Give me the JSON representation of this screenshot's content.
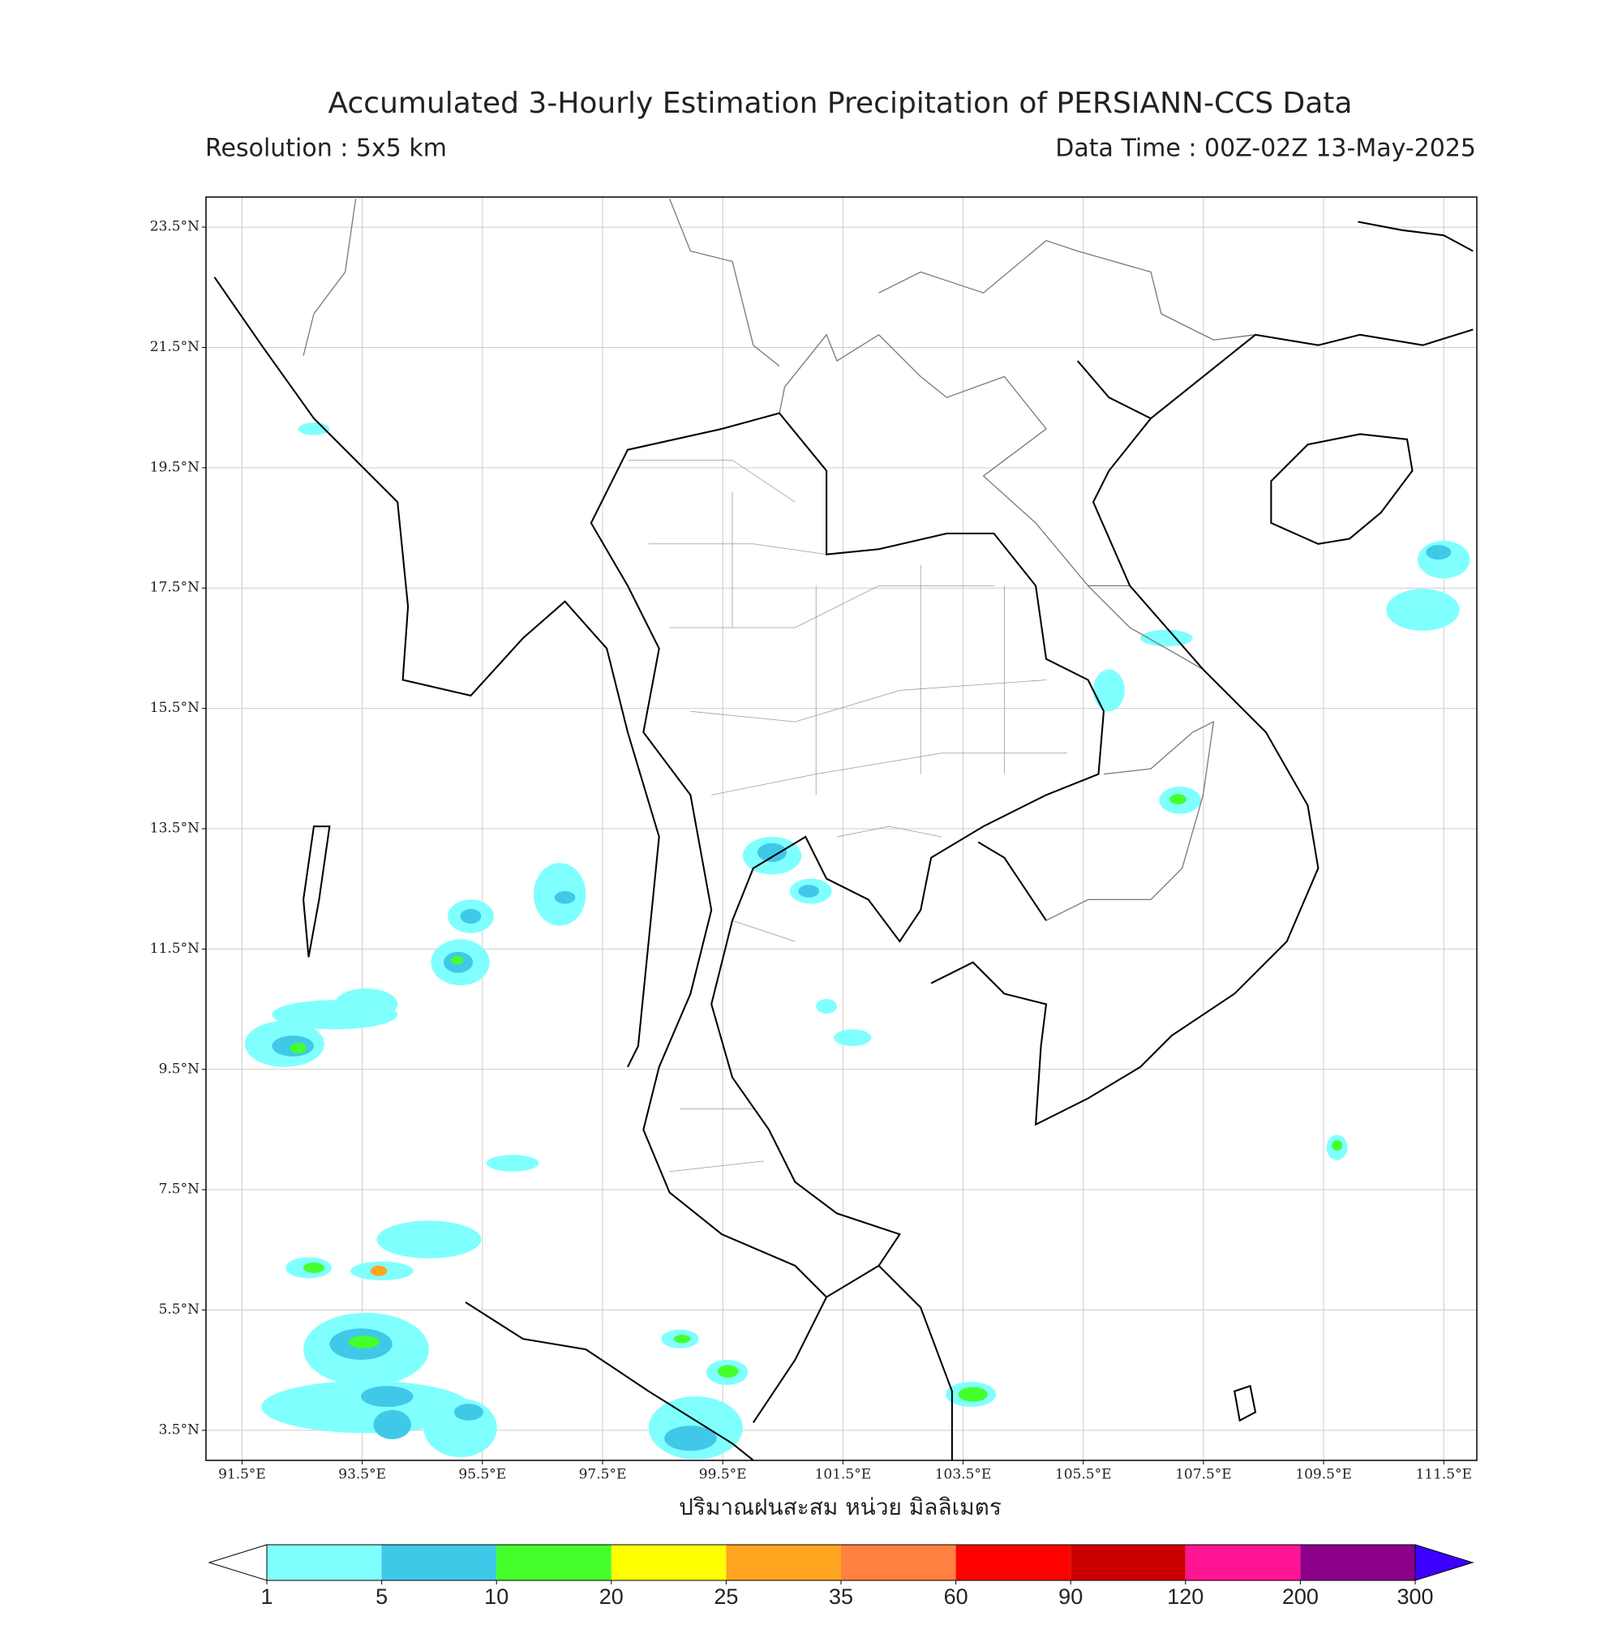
{
  "title": "Accumulated 3-Hourly Estimation Precipitation of PERSIANN-CCS Data",
  "resolution": "Resolution : 5x5 km",
  "data_time": "Data Time : 00Z-02Z 13-May-2025",
  "map": {
    "xlim": [
      90.9,
      112.05
    ],
    "ylim": [
      3.0,
      24.0
    ],
    "grid": true,
    "xticks": [
      {
        "value": 91.5,
        "label": "91.5°E"
      },
      {
        "value": 93.5,
        "label": "93.5°E"
      },
      {
        "value": 95.5,
        "label": "95.5°E"
      },
      {
        "value": 97.5,
        "label": "97.5°E"
      },
      {
        "value": 99.5,
        "label": "99.5°E"
      },
      {
        "value": 101.5,
        "label": "101.5°E"
      },
      {
        "value": 103.5,
        "label": "103.5°E"
      },
      {
        "value": 105.5,
        "label": "105.5°E"
      },
      {
        "value": 107.5,
        "label": "107.5°E"
      },
      {
        "value": 109.5,
        "label": "109.5°E"
      },
      {
        "value": 111.5,
        "label": "111.5°E"
      }
    ],
    "yticks": [
      {
        "value": 23.5,
        "label": "23.5°N"
      },
      {
        "value": 21.5,
        "label": "21.5°N"
      },
      {
        "value": 19.5,
        "label": "19.5°N"
      },
      {
        "value": 17.5,
        "label": "17.5°N"
      },
      {
        "value": 15.5,
        "label": "15.5°N"
      },
      {
        "value": 13.5,
        "label": "13.5°N"
      },
      {
        "value": 11.5,
        "label": "11.5°N"
      },
      {
        "value": 9.5,
        "label": "9.5°N"
      },
      {
        "value": 7.5,
        "label": "7.5°N"
      },
      {
        "value": 5.5,
        "label": "5.5°N"
      },
      {
        "value": 3.5,
        "label": "3.5°N"
      }
    ],
    "xlabel": "ปริมาณฝนสะสม หน่วย มิลลิเมตร"
  },
  "colorbar": {
    "levels": [
      1,
      5,
      10,
      20,
      25,
      35,
      60,
      90,
      120,
      200,
      300
    ],
    "colors": [
      "#80ffff",
      "#40c8e8",
      "#44ff2c",
      "#ffff00",
      "#ffa520",
      "#ff8040",
      "#ff0000",
      "#cc0000",
      "#ff1493",
      "#8b008b"
    ],
    "under_color": "#ffffff",
    "over_color": "#3c00ff"
  }
}
